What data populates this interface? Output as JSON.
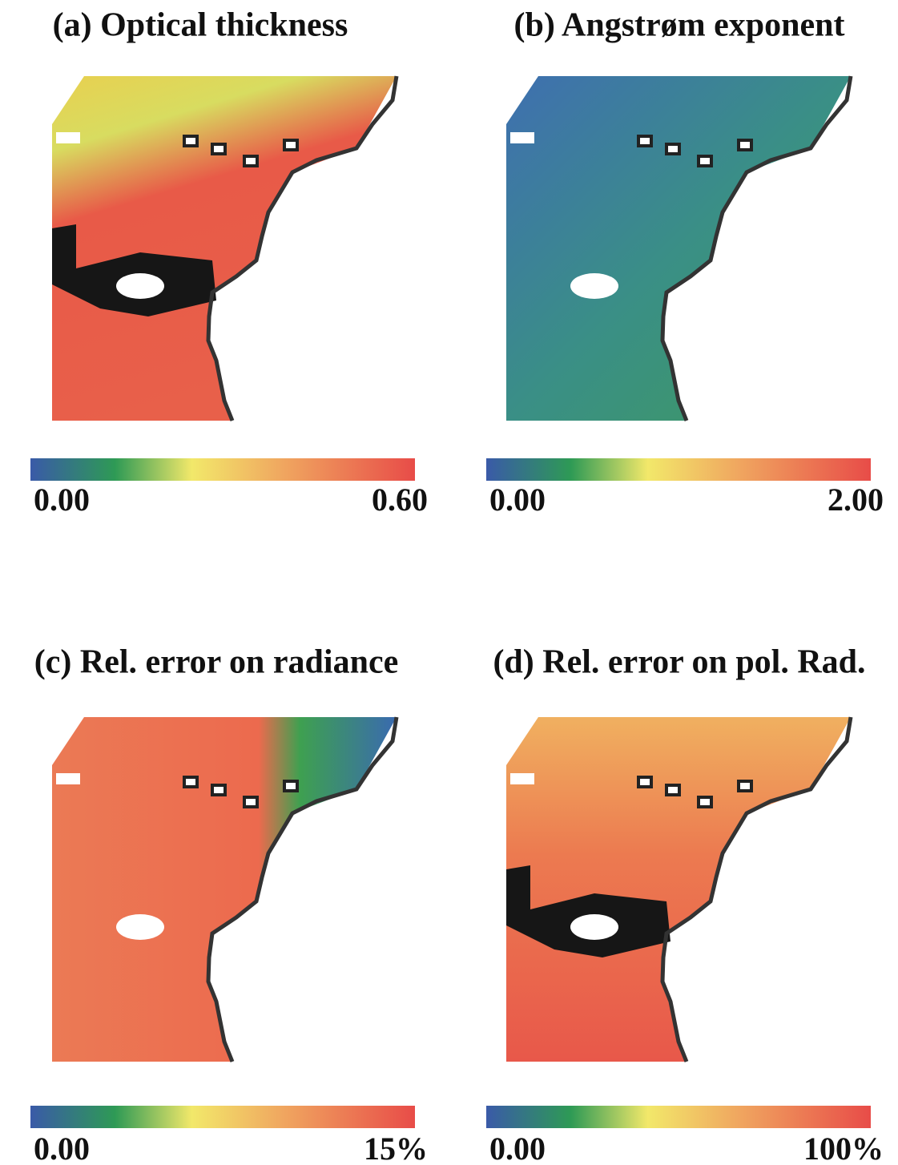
{
  "panels": [
    {
      "title": "(a) Optical thickness",
      "colorbar": {
        "min": "0.00",
        "max": "0.60"
      }
    },
    {
      "title": "(b) Angstrøm exponent",
      "colorbar": {
        "min": "0.00",
        "max": "2.00"
      }
    },
    {
      "title": "(c) Rel. error on radiance",
      "colorbar": {
        "min": "0.00",
        "max": "15%"
      }
    },
    {
      "title": "(d) Rel. error on pol. Rad.",
      "colorbar": {
        "min": "0.00",
        "max": "100%"
      }
    }
  ]
}
